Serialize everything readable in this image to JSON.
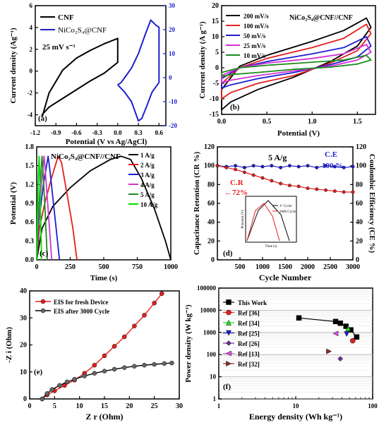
{
  "chart_data": [
    {
      "panel_label": "(a)",
      "type": "line",
      "xlabel": "Potential (V vs Ag/AgCl)",
      "ylabel": "Current density (Ag⁻¹)",
      "y2label": "",
      "annotation": "25 mV s⁻¹",
      "xlim": [
        -1.2,
        0.7
      ],
      "ylim": [
        -5,
        6
      ],
      "y2lim": [
        -20,
        30
      ],
      "xticks": [
        -1.2,
        -0.9,
        -0.6,
        -0.3,
        0.0,
        0.3,
        0.6
      ],
      "yticks": [
        -4,
        -2,
        0,
        2,
        4,
        6
      ],
      "y2ticks": [
        -20,
        -10,
        0,
        10,
        20,
        30
      ],
      "colors": {
        "CNF": "#000000",
        "NiCo2S4@CNF": "#1e1ed2"
      },
      "series": [
        {
          "name": "CNF",
          "axis": "left",
          "x": [
            -1.1,
            -1.0,
            -0.8,
            -0.6,
            -0.4,
            -0.2,
            0.0,
            0.0,
            -0.2,
            -0.4,
            -0.6,
            -0.8,
            -1.0,
            -1.1,
            -1.1
          ],
          "y": [
            -4.2,
            -2.0,
            0.1,
            1.2,
            1.9,
            2.5,
            3.0,
            0.8,
            -0.2,
            -0.9,
            -1.7,
            -2.5,
            -3.3,
            -4.0,
            -4.2
          ]
        },
        {
          "name": "NiCo₂S₄@CNF",
          "axis": "right",
          "x": [
            0.0,
            0.05,
            0.1,
            0.2,
            0.3,
            0.4,
            0.48,
            0.55,
            0.6,
            0.6,
            0.5,
            0.42,
            0.35,
            0.3,
            0.25,
            0.2,
            0.1,
            0.0
          ],
          "y": [
            -3.0,
            -2.0,
            0.0,
            4.0,
            10.0,
            18.0,
            24.0,
            22.0,
            21.0,
            -2.0,
            -6.0,
            -12.0,
            -17.0,
            -18.0,
            -14.0,
            -10.0,
            -6.0,
            -3.0
          ]
        }
      ]
    },
    {
      "panel_label": "(b)",
      "type": "line",
      "title": "NiCo₂S₄@CNF//CNF",
      "xlabel": "Potential (V)",
      "ylabel": "Current density (A g⁻¹)",
      "xlim": [
        0,
        1.7
      ],
      "ylim": [
        -15,
        20
      ],
      "xticks": [
        0.0,
        0.5,
        1.0,
        1.5
      ],
      "yticks": [
        -15,
        -10,
        -5,
        0,
        5,
        10,
        15,
        20
      ],
      "series": [
        {
          "name": "200 mV/s",
          "color": "#000000",
          "upper": [
            [
              0,
              -7
            ],
            [
              0.2,
              0.5
            ],
            [
              0.5,
              4
            ],
            [
              1.0,
              8.5
            ],
            [
              1.35,
              12
            ],
            [
              1.6,
              16
            ]
          ],
          "lower": [
            [
              1.65,
              13
            ],
            [
              1.5,
              7
            ],
            [
              1.2,
              2
            ],
            [
              0.8,
              -3
            ],
            [
              0.4,
              -7
            ],
            [
              0.1,
              -11
            ],
            [
              0.0,
              -13.5
            ]
          ]
        },
        {
          "name": "100 mV/s",
          "color": "#e61e1e",
          "upper": [
            [
              0,
              -5
            ],
            [
              0.2,
              0
            ],
            [
              0.5,
              3
            ],
            [
              1.0,
              6.5
            ],
            [
              1.35,
              9.5
            ],
            [
              1.6,
              14
            ]
          ],
          "lower": [
            [
              1.65,
              11
            ],
            [
              1.5,
              5.5
            ],
            [
              1.2,
              1.5
            ],
            [
              0.8,
              -2.5
            ],
            [
              0.4,
              -5
            ],
            [
              0.1,
              -8
            ],
            [
              0.0,
              -10
            ]
          ]
        },
        {
          "name": "50 mV/s",
          "color": "#1e1ed2",
          "upper": [
            [
              0,
              -3.5
            ],
            [
              0.2,
              0
            ],
            [
              0.5,
              2
            ],
            [
              1.0,
              4.5
            ],
            [
              1.35,
              6.5
            ],
            [
              1.6,
              10
            ]
          ],
          "lower": [
            [
              1.65,
              7
            ],
            [
              1.5,
              3.5
            ],
            [
              1.2,
              1
            ],
            [
              0.8,
              -1.5
            ],
            [
              0.4,
              -3.5
            ],
            [
              0.1,
              -5.5
            ],
            [
              0.0,
              -6.5
            ]
          ]
        },
        {
          "name": "25 mV/s",
          "color": "#d232d2",
          "upper": [
            [
              0,
              -2.5
            ],
            [
              0.2,
              0
            ],
            [
              0.5,
              1.5
            ],
            [
              1.0,
              3
            ],
            [
              1.35,
              4.5
            ],
            [
              1.6,
              7.5
            ]
          ],
          "lower": [
            [
              1.65,
              5
            ],
            [
              1.5,
              2.5
            ],
            [
              1.2,
              0.5
            ],
            [
              0.8,
              -1
            ],
            [
              0.4,
              -2.5
            ],
            [
              0.1,
              -4
            ],
            [
              0.0,
              -4.8
            ]
          ]
        },
        {
          "name": "10 mV/s",
          "color": "#1e8c1e",
          "upper": [
            [
              0,
              -1.5
            ],
            [
              0.2,
              0
            ],
            [
              0.5,
              0.8
            ],
            [
              1.0,
              1.8
            ],
            [
              1.35,
              2.5
            ],
            [
              1.6,
              4
            ]
          ],
          "lower": [
            [
              1.65,
              2.5
            ],
            [
              1.5,
              1.2
            ],
            [
              1.2,
              0.2
            ],
            [
              0.8,
              -0.5
            ],
            [
              0.4,
              -1.5
            ],
            [
              0.1,
              -2.2
            ],
            [
              0.0,
              -2.8
            ]
          ]
        }
      ]
    },
    {
      "panel_label": "(c)",
      "type": "line",
      "title": "NiCo₂S₄@CNF//CNF",
      "xlabel": "Time (s)",
      "ylabel": "Potential (V)",
      "xlim": [
        0,
        1000
      ],
      "ylim": [
        0,
        1.8
      ],
      "xticks": [
        0,
        250,
        500,
        750,
        1000
      ],
      "yticks": [
        0.0,
        0.3,
        0.6,
        0.9,
        1.2,
        1.5,
        1.8
      ],
      "series": [
        {
          "name": "1 A/g",
          "color": "#000000",
          "points": [
            [
              0,
              0
            ],
            [
              40,
              0.5
            ],
            [
              120,
              0.85
            ],
            [
              250,
              1.15
            ],
            [
              400,
              1.42
            ],
            [
              550,
              1.6
            ],
            [
              630,
              1.65
            ],
            [
              700,
              1.6
            ],
            [
              780,
              1.3
            ],
            [
              880,
              0.8
            ],
            [
              960,
              0.3
            ],
            [
              1000,
              0.0
            ]
          ]
        },
        {
          "name": "2 A/g",
          "color": "#e61e1e",
          "points": [
            [
              0,
              0
            ],
            [
              20,
              0.5
            ],
            [
              60,
              0.9
            ],
            [
              110,
              1.3
            ],
            [
              160,
              1.65
            ],
            [
              185,
              1.55
            ],
            [
              230,
              1.0
            ],
            [
              270,
              0.5
            ],
            [
              300,
              0.0
            ]
          ]
        },
        {
          "name": "3 A/g",
          "color": "#1e1ed2",
          "points": [
            [
              0,
              0
            ],
            [
              15,
              0.6
            ],
            [
              50,
              1.2
            ],
            [
              85,
              1.65
            ],
            [
              100,
              1.4
            ],
            [
              130,
              0.8
            ],
            [
              160,
              0.2
            ],
            [
              170,
              0.0
            ]
          ]
        },
        {
          "name": "4 A/g",
          "color": "#d232d2",
          "points": [
            [
              0,
              0
            ],
            [
              12,
              0.6
            ],
            [
              35,
              1.2
            ],
            [
              55,
              1.65
            ],
            [
              65,
              1.4
            ],
            [
              85,
              0.8
            ],
            [
              105,
              0.2
            ],
            [
              112,
              0.0
            ]
          ]
        },
        {
          "name": "5 A/g",
          "color": "#1e8c1e",
          "points": [
            [
              0,
              0
            ],
            [
              10,
              0.6
            ],
            [
              25,
              1.2
            ],
            [
              40,
              1.65
            ],
            [
              48,
              1.4
            ],
            [
              62,
              0.8
            ],
            [
              75,
              0.2
            ],
            [
              80,
              0.0
            ]
          ]
        },
        {
          "name": "10 A/g",
          "color": "#00dc00",
          "points": [
            [
              0,
              0
            ],
            [
              5,
              0.7
            ],
            [
              12,
              1.3
            ],
            [
              18,
              1.65
            ],
            [
              22,
              1.4
            ],
            [
              28,
              0.8
            ],
            [
              34,
              0.2
            ],
            [
              36,
              0.0
            ]
          ]
        }
      ]
    },
    {
      "panel_label": "(d)",
      "type": "scatter",
      "annotation": "5 A/g",
      "xlabel": "Cycle Number",
      "ylabel": "Capacitance Retention (CR %)",
      "y2label": "Coulombic Efficiency (CE %)",
      "xlim": [
        0,
        3000
      ],
      "ylim": [
        0,
        120
      ],
      "y2lim": [
        0,
        120
      ],
      "xticks": [
        500,
        1000,
        1500,
        2000,
        2500,
        3000
      ],
      "yticks": [
        0,
        20,
        40,
        60,
        80,
        100,
        120
      ],
      "y2ticks": [
        0,
        20,
        40,
        60,
        80,
        100,
        120
      ],
      "ce_label": "C.E",
      "ce_value": "100 %",
      "cr_label": "C.R",
      "cr_value": "←72%",
      "series": [
        {
          "name": "C.E",
          "color": "#1e1ed2",
          "x": [
            0,
            200,
            400,
            600,
            800,
            1000,
            1200,
            1400,
            1600,
            1800,
            2000,
            2200,
            2400,
            2600,
            2800,
            3000
          ],
          "y": [
            100,
            99,
            100,
            98,
            100,
            99,
            100,
            98,
            100,
            99,
            100,
            98,
            100,
            99,
            98,
            99
          ]
        },
        {
          "name": "C.R",
          "color": "#e61e1e",
          "x": [
            0,
            200,
            400,
            600,
            800,
            1000,
            1200,
            1400,
            1600,
            1800,
            2000,
            2200,
            2400,
            2600,
            2800,
            3000
          ],
          "y": [
            100,
            98,
            96,
            93,
            90,
            87,
            84,
            81,
            79,
            78,
            76,
            75,
            74,
            73,
            72,
            72
          ]
        }
      ],
      "inset": {
        "xlabel": "Time (s)",
        "ylabel": "Potential (V)",
        "legend": [
          "1ˢᵗ Cycle",
          "3000 Cycle"
        ],
        "colors": [
          "#000000",
          "#e61e1e"
        ]
      }
    },
    {
      "panel_label": "(e)",
      "type": "scatter",
      "xlabel": "Z r (Ohm)",
      "ylabel": "-Z i (Ohm)",
      "xlim": [
        0,
        30
      ],
      "ylim": [
        0,
        40
      ],
      "xticks": [
        0,
        5,
        10,
        15,
        20,
        25,
        30
      ],
      "yticks": [
        0,
        10,
        20,
        30,
        40
      ],
      "series": [
        {
          "name": "EIS for fresh Device",
          "color": "#e61e1e",
          "x": [
            2.5,
            3.5,
            5,
            7,
            9,
            11,
            13,
            15,
            17,
            19,
            21,
            23,
            25,
            26.5
          ],
          "y": [
            0,
            1.5,
            3,
            5,
            7,
            9.5,
            12.5,
            16,
            19.5,
            23,
            27,
            31,
            35.5,
            39
          ]
        },
        {
          "name": "EIS after 3000 Cycle",
          "color": "#000000",
          "x": [
            2.5,
            3.5,
            4.5,
            6,
            7.5,
            9,
            11,
            13,
            15,
            17,
            19,
            21,
            23,
            25,
            27,
            28.5
          ],
          "y": [
            0,
            2,
            3.5,
            5,
            6.3,
            7.3,
            8.5,
            9.5,
            10.3,
            11,
            11.6,
            12.1,
            12.5,
            12.8,
            13.1,
            13.3
          ]
        }
      ]
    },
    {
      "panel_label": "(f)",
      "type": "scatter",
      "xscale": "log",
      "yscale": "log",
      "xlabel": "Energy density (Wh kg⁻¹)",
      "ylabel": "Power density (W kg⁻¹)",
      "xlim": [
        1,
        100
      ],
      "ylim": [
        1,
        100000
      ],
      "xticks": [
        1,
        10,
        100
      ],
      "yticks": [
        1,
        10,
        100,
        1000,
        10000,
        100000
      ],
      "series": [
        {
          "name": "This Work",
          "color": "#000000",
          "marker": "square",
          "line": true,
          "x": [
            11,
            33,
            38,
            45,
            52,
            62
          ],
          "y": [
            4500,
            3100,
            2600,
            1900,
            1300,
            620
          ]
        },
        {
          "name": "Ref [36]",
          "color": "#e61e1e",
          "marker": "circle",
          "x": [
            55
          ],
          "y": [
            420
          ]
        },
        {
          "name": "Ref [34]",
          "color": "#1ee61e",
          "marker": "triangle-up",
          "x": [
            48
          ],
          "y": [
            1500
          ]
        },
        {
          "name": "Ref [25]",
          "color": "#1e1ed2",
          "marker": "triangle-down",
          "x": [
            46
          ],
          "y": [
            850
          ]
        },
        {
          "name": "Ref [26]",
          "color": "#6e2e96",
          "marker": "diamond",
          "x": [
            38
          ],
          "y": [
            65
          ]
        },
        {
          "name": "Ref [13]",
          "color": "#e650e6",
          "marker": "triangle-left",
          "x": [
            33
          ],
          "y": [
            900
          ]
        },
        {
          "name": "Ref [32]",
          "color": "#8b2b2b",
          "marker": "triangle-right",
          "x": [
            27
          ],
          "y": [
            140
          ]
        }
      ]
    }
  ]
}
